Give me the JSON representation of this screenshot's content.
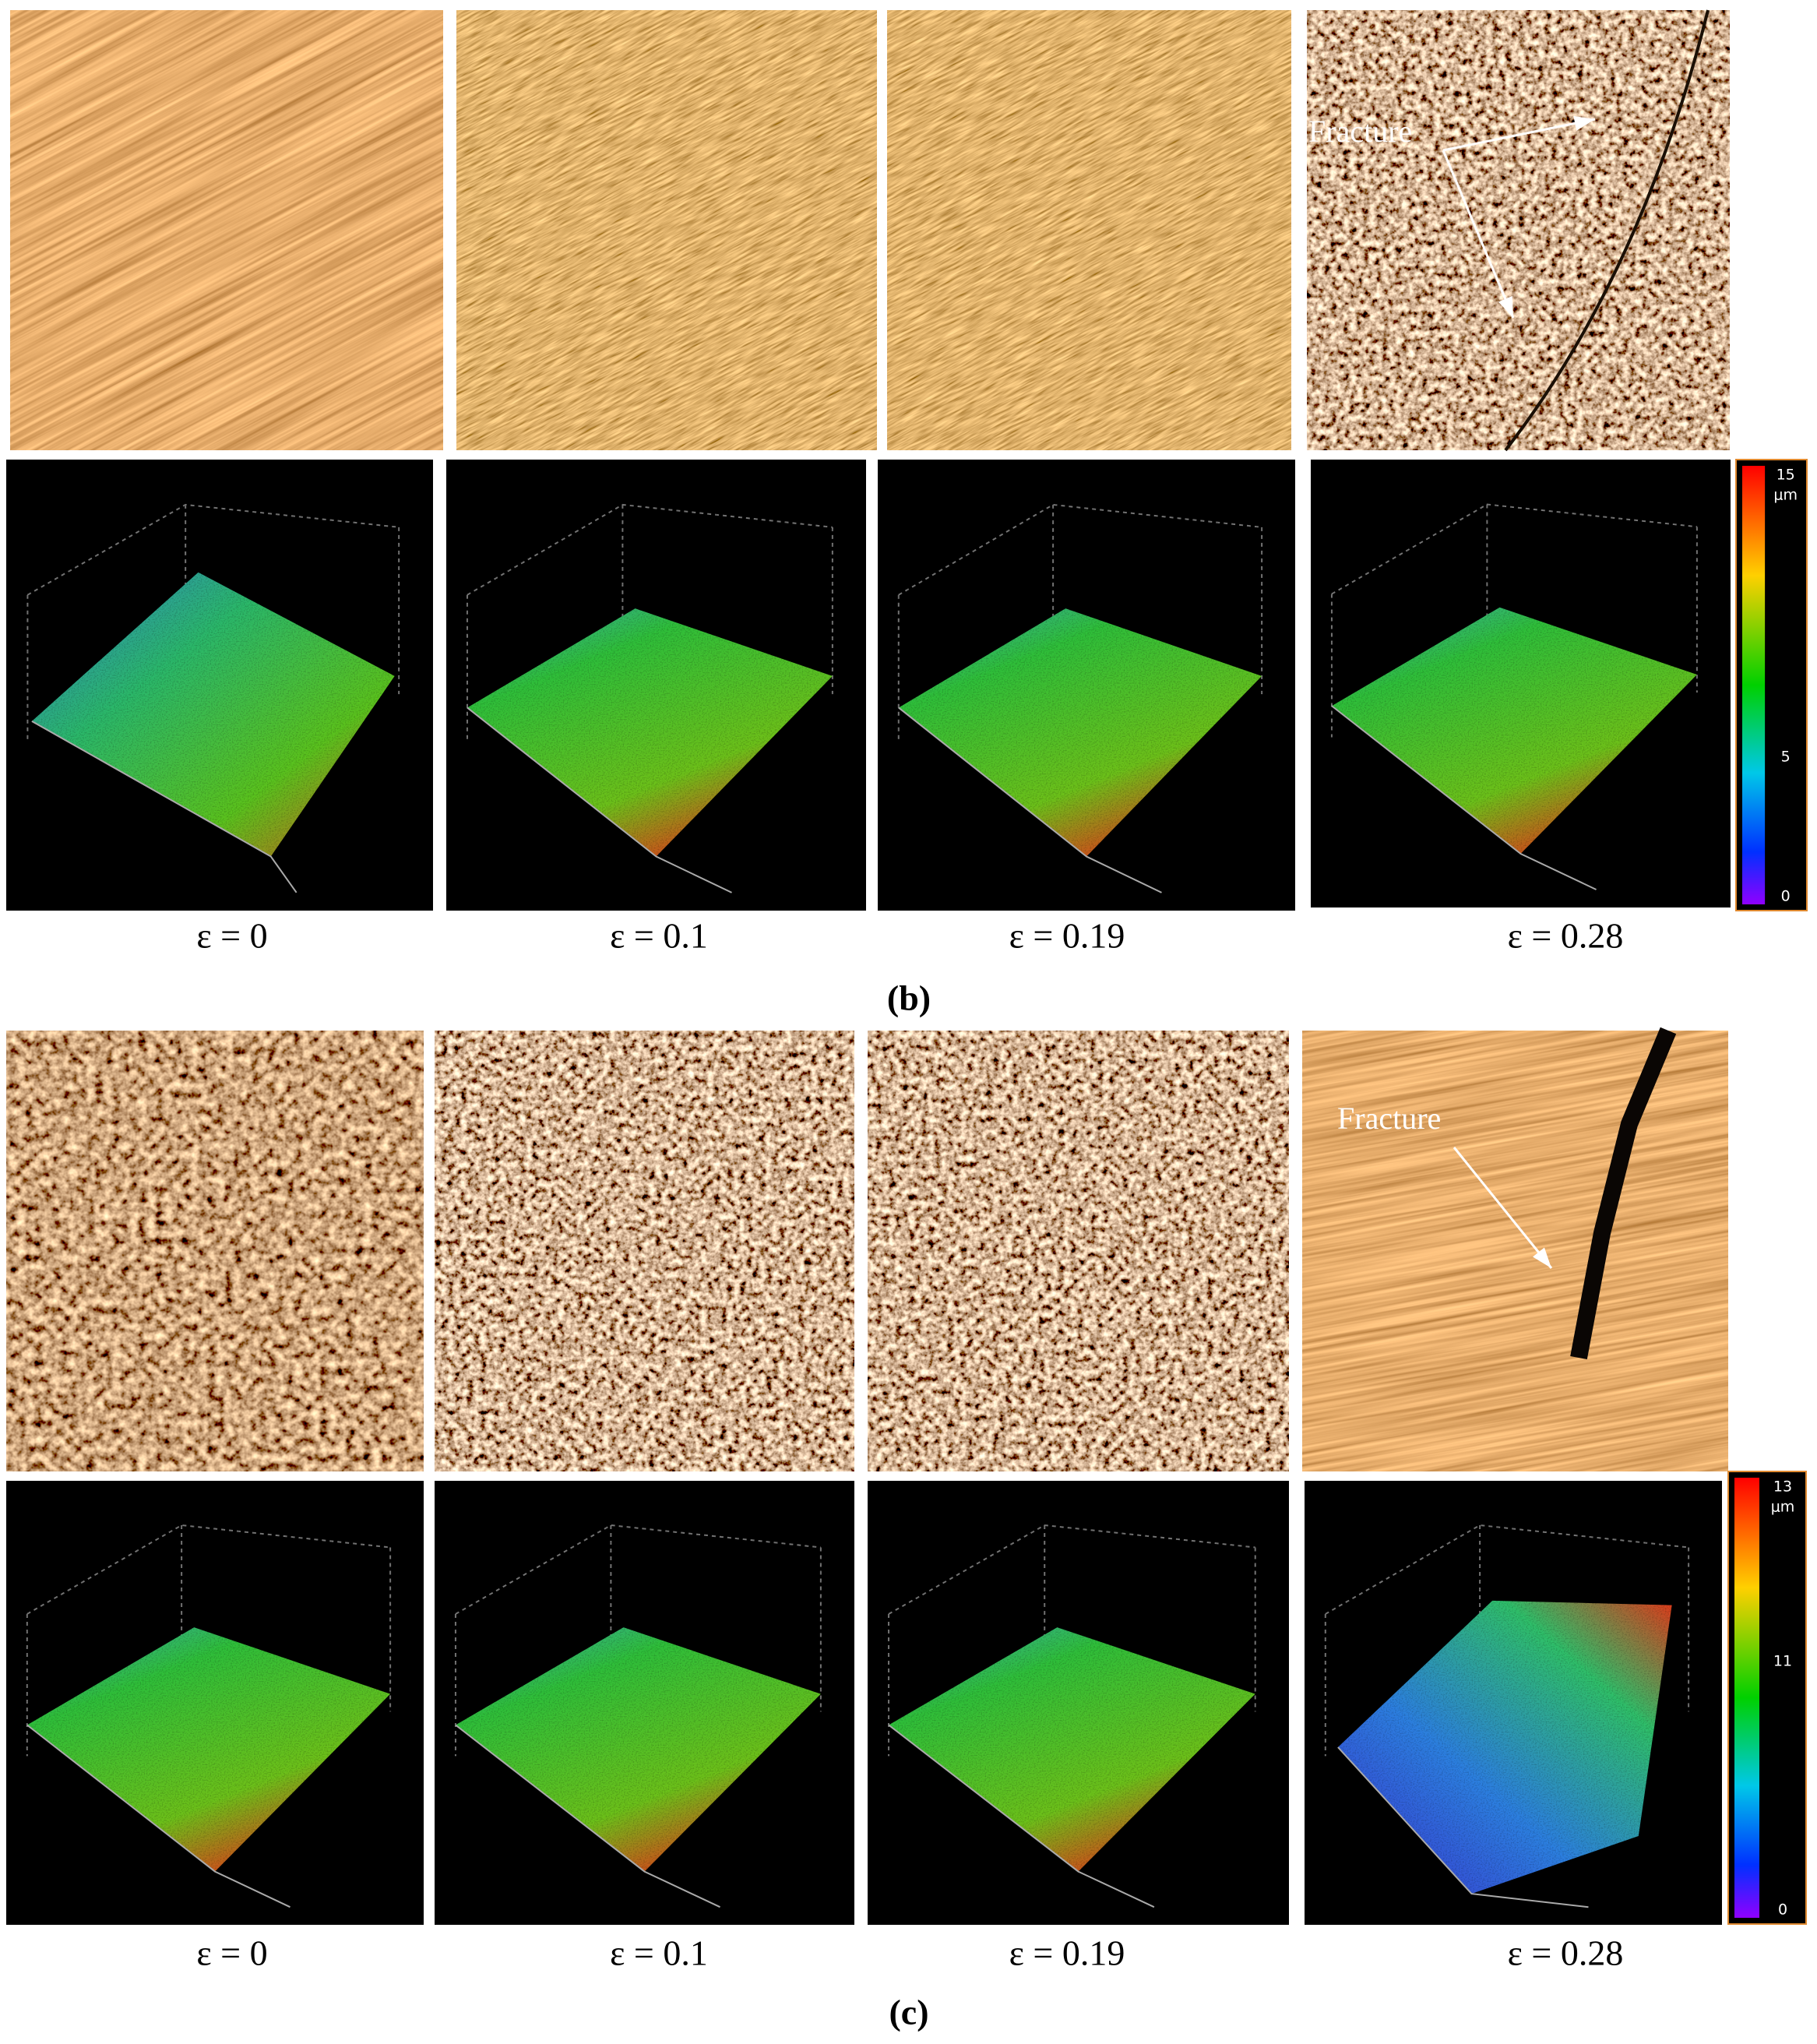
{
  "panels": [
    {
      "label": "(b)",
      "strains": [
        "ε = 0",
        "ε = 0.1",
        "ε = 0.19",
        "ε = 0.28"
      ],
      "annotation": "Fracture",
      "colorbar": {
        "max": "15",
        "unit": "μm",
        "mid": "5",
        "min": "0"
      }
    },
    {
      "label": "(c)",
      "strains": [
        "ε = 0",
        "ε = 0.1",
        "ε = 0.19",
        "ε = 0.28"
      ],
      "annotation": "Fracture",
      "colorbar": {
        "max": "13",
        "unit": "μm",
        "mid": "11",
        "min": "0"
      }
    }
  ]
}
